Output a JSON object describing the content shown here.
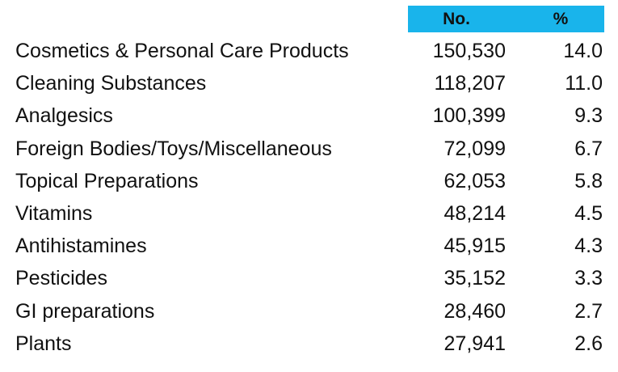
{
  "chart_data": {
    "type": "table",
    "columns": [
      "No.",
      "%"
    ],
    "rows": [
      {
        "label": "Cosmetics & Personal Care Products",
        "no": "150,530",
        "pct": "14.0"
      },
      {
        "label": "Cleaning Substances",
        "no": "118,207",
        "pct": "11.0"
      },
      {
        "label": "Analgesics",
        "no": "100,399",
        "pct": "9.3"
      },
      {
        "label": "Foreign Bodies/Toys/Miscellaneous",
        "no": "72,099",
        "pct": "6.7"
      },
      {
        "label": "Topical Preparations",
        "no": "62,053",
        "pct": "5.8"
      },
      {
        "label": "Vitamins",
        "no": "48,214",
        "pct": "4.5"
      },
      {
        "label": "Antihistamines",
        "no": "45,915",
        "pct": "4.3"
      },
      {
        "label": "Pesticides",
        "no": "35,152",
        "pct": "3.3"
      },
      {
        "label": "GI preparations",
        "no": "28,460",
        "pct": "2.7"
      },
      {
        "label": "Plants",
        "no": "27,941",
        "pct": "2.6"
      }
    ]
  },
  "colors": {
    "header_band": "#19b4eb",
    "text": "#111111"
  }
}
